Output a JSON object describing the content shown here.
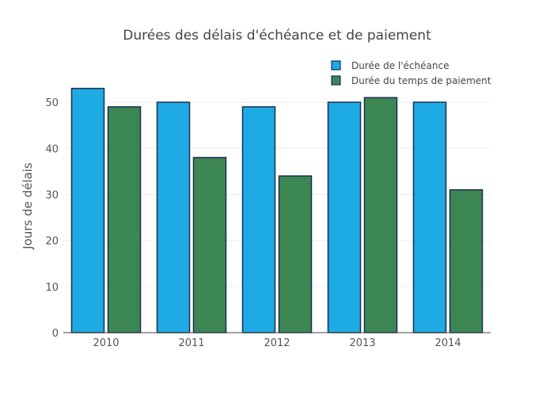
{
  "chart_data": {
    "type": "bar",
    "title": "Durées des délais d'échéance et de paiement",
    "xlabel": "",
    "ylabel": "Jours de délais",
    "categories": [
      "2010",
      "2011",
      "2012",
      "2013",
      "2014"
    ],
    "series": [
      {
        "name": "Durée de l'échéance",
        "values": [
          53,
          50,
          49,
          50,
          50
        ],
        "color": "#1eaae4"
      },
      {
        "name": "Durée du temps de paiement",
        "values": [
          49,
          38,
          34,
          51,
          31
        ],
        "color": "#3c8654"
      }
    ],
    "ylim": [
      0,
      55
    ],
    "yticks": [
      0,
      10,
      20,
      30,
      40,
      50
    ],
    "grid": true,
    "legend_position": "top-right",
    "bar_outline_color": "#1a2e4f"
  }
}
